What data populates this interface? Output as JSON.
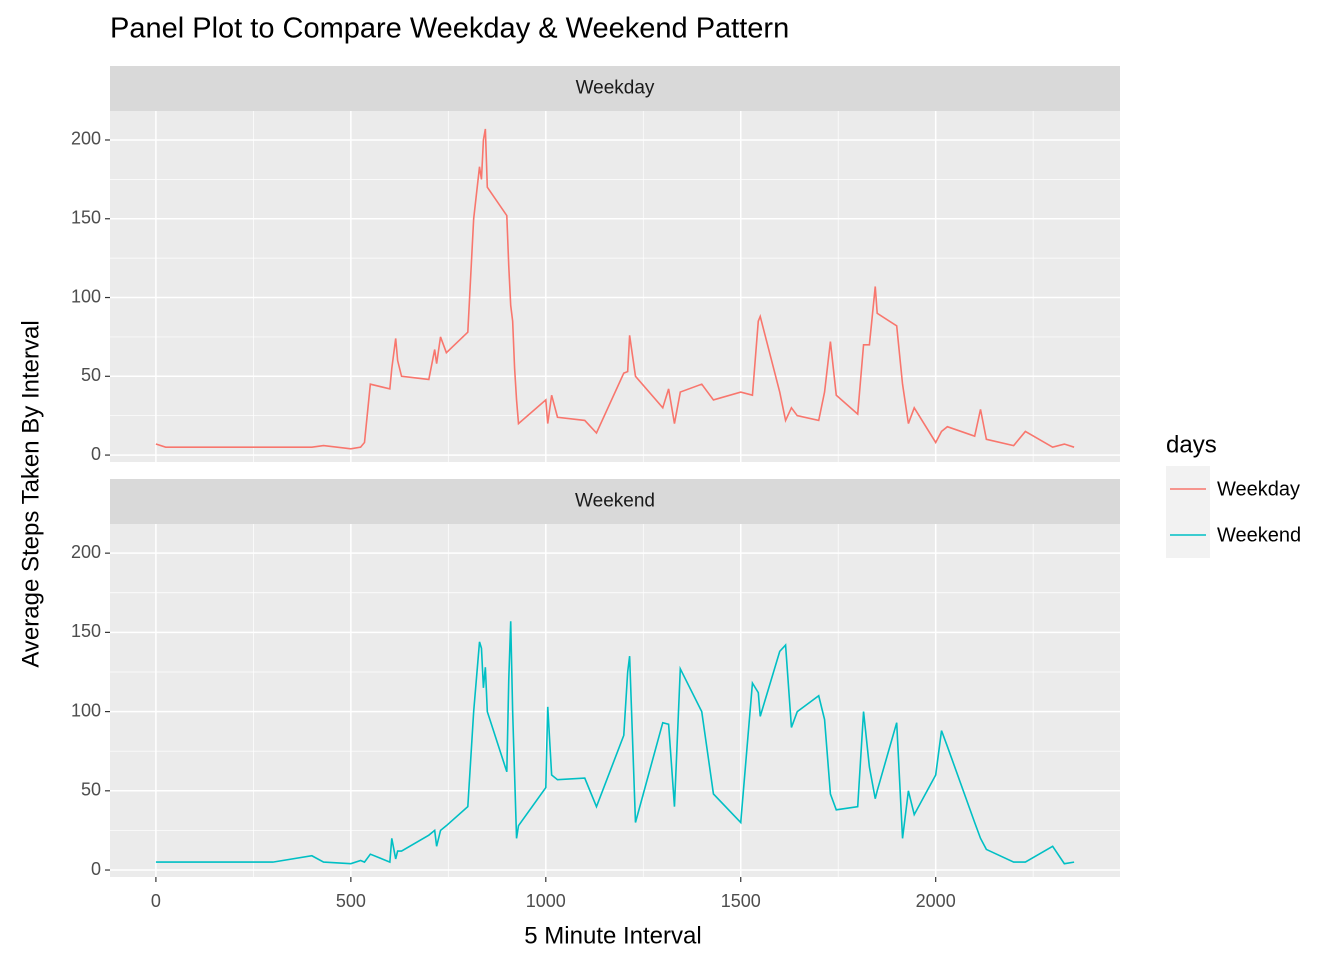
{
  "chart_data": {
    "type": "line",
    "title": "Panel Plot to Compare Weekday & Weekend Pattern",
    "xlabel": "5 Minute Interval",
    "ylabel": "Average Steps Taken By Interval",
    "legend_title": "days",
    "legend_position": "right",
    "facets": true,
    "grid": true,
    "xlim": [
      -117.75,
      2472.75
    ],
    "ylim": [
      -4.4,
      218.4
    ],
    "xticks": [
      0,
      500,
      1000,
      1500,
      2000
    ],
    "yticks": [
      0,
      50,
      100,
      150,
      200
    ],
    "xminor": [
      250,
      750,
      1250,
      1750,
      2250
    ],
    "yminor": [
      25,
      75,
      125,
      175
    ],
    "x": [
      0,
      25,
      55,
      100,
      200,
      300,
      400,
      430,
      500,
      525,
      535,
      550,
      600,
      605,
      615,
      620,
      630,
      700,
      715,
      720,
      730,
      745,
      800,
      815,
      830,
      835,
      840,
      845,
      850,
      900,
      905,
      910,
      915,
      920,
      925,
      930,
      1000,
      1005,
      1015,
      1030,
      1100,
      1130,
      1200,
      1210,
      1215,
      1230,
      1300,
      1315,
      1330,
      1345,
      1400,
      1430,
      1500,
      1530,
      1545,
      1550,
      1600,
      1615,
      1630,
      1645,
      1700,
      1715,
      1730,
      1745,
      1800,
      1815,
      1830,
      1845,
      1850,
      1900,
      1915,
      1930,
      1945,
      2000,
      2015,
      2030,
      2100,
      2115,
      2130,
      2200,
      2230,
      2300,
      2330,
      2355
    ],
    "series": [
      {
        "name": "Weekday",
        "color": "#f8766d",
        "values": [
          7,
          5,
          5,
          5,
          5,
          5,
          5,
          6,
          4,
          5,
          8,
          45,
          42,
          55,
          74,
          60,
          50,
          48,
          67,
          58,
          75,
          65,
          78,
          150,
          183,
          175,
          200,
          207,
          170,
          152,
          120,
          95,
          85,
          55,
          35,
          20,
          35,
          20,
          38,
          24,
          22,
          14,
          52,
          53,
          76,
          50,
          30,
          42,
          20,
          40,
          45,
          35,
          40,
          38,
          85,
          88,
          40,
          22,
          30,
          25,
          22,
          40,
          72,
          38,
          26,
          70,
          70,
          107,
          90,
          82,
          45,
          20,
          30,
          8,
          15,
          18,
          12,
          29,
          10,
          6,
          15,
          5,
          7,
          5
        ]
      },
      {
        "name": "Weekend",
        "color": "#00bfc4",
        "values": [
          5,
          5,
          5,
          5,
          5,
          5,
          9,
          5,
          4,
          6,
          5,
          10,
          5,
          20,
          7,
          12,
          12,
          22,
          25,
          15,
          25,
          28,
          40,
          100,
          144,
          140,
          115,
          128,
          100,
          62,
          120,
          157,
          100,
          60,
          20,
          28,
          52,
          103,
          60,
          57,
          58,
          40,
          85,
          125,
          135,
          30,
          93,
          92,
          40,
          127,
          100,
          48,
          30,
          118,
          112,
          97,
          138,
          142,
          90,
          100,
          110,
          95,
          48,
          38,
          40,
          100,
          65,
          45,
          50,
          93,
          20,
          50,
          35,
          60,
          88,
          78,
          30,
          20,
          13,
          5,
          5,
          15,
          4,
          5
        ]
      }
    ]
  }
}
